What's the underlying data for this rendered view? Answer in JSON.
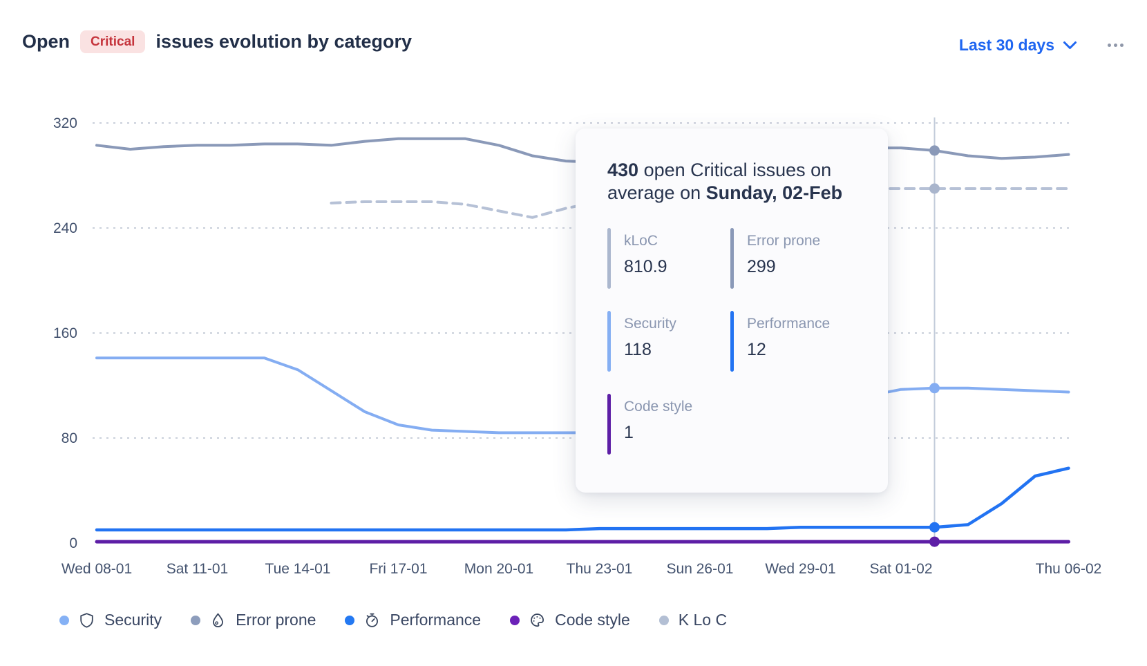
{
  "header": {
    "title_prefix": "Open",
    "severity_badge": "Critical",
    "title_suffix": "issues evolution by category",
    "range_selector": "Last 30 days"
  },
  "tooltip": {
    "headline_value": "430",
    "headline_text": " open Critical issues on average on ",
    "headline_date": "Sunday, 02-Feb",
    "metrics": [
      {
        "label": "kLoC",
        "value": "810.9",
        "color": "#ABB7CE"
      },
      {
        "label": "Error prone",
        "value": "299",
        "color": "#8A99B8"
      },
      {
        "label": "Security",
        "value": "118",
        "color": "#85AFF3"
      },
      {
        "label": "Performance",
        "value": "12",
        "color": "#2273F2"
      },
      {
        "label": "Code style",
        "value": "1",
        "color": "#5D1EA6"
      }
    ]
  },
  "legend": [
    {
      "label": "Security",
      "icon": "shield-icon",
      "color": "#85B1F5"
    },
    {
      "label": "Error prone",
      "icon": "droplet-icon",
      "color": "#8D9DBC"
    },
    {
      "label": "Performance",
      "icon": "stopwatch-icon",
      "color": "#2479F2"
    },
    {
      "label": "Code style",
      "icon": "palette-icon",
      "color": "#6B21B8"
    },
    {
      "label": "K Lo C",
      "icon": null,
      "color": "#B3BFD4"
    }
  ],
  "colors": {
    "title_text": "#222F48",
    "badge_bg": "#FAE2E2",
    "badge_text": "#C5343C",
    "range_link": "#1F66F1",
    "axis_text": "#44536F",
    "gridline": "#C9CFDA",
    "highlight_line": "#C3CCDA",
    "tooltip_bg": "#FBFBFD"
  },
  "chart_data": {
    "type": "line",
    "title": "Open Critical issues evolution by category",
    "x_range": {
      "start": "Wed 08-01",
      "end": "Thu 06-02",
      "days": 30
    },
    "x_ticks": [
      {
        "index": 0,
        "label": "Wed 08-01"
      },
      {
        "index": 3,
        "label": "Sat 11-01"
      },
      {
        "index": 6,
        "label": "Tue 14-01"
      },
      {
        "index": 9,
        "label": "Fri 17-01"
      },
      {
        "index": 12,
        "label": "Mon 20-01"
      },
      {
        "index": 15,
        "label": "Thu 23-01"
      },
      {
        "index": 18,
        "label": "Sun 26-01"
      },
      {
        "index": 21,
        "label": "Wed 29-01"
      },
      {
        "index": 24,
        "label": "Sat 01-02"
      },
      {
        "index": 29,
        "label": "Thu 06-02"
      }
    ],
    "y_ticks": [
      0,
      80,
      160,
      240,
      320
    ],
    "ylim": [
      0,
      335
    ],
    "grid": true,
    "legend_position": "bottom",
    "highlight": {
      "day_index": 25,
      "date_label": "Sunday, 02-Feb",
      "open_critical_avg": 430
    },
    "series": [
      {
        "name": "kLoC",
        "color": "#B6C1D6",
        "dash": "13 9",
        "width": 4,
        "dot_color": "#A9B5CC",
        "note": "plotted on hidden secondary scale; actual value on 02-Feb is 810.9 kLoC",
        "values": [
          null,
          null,
          null,
          null,
          null,
          null,
          null,
          259,
          260,
          260,
          260,
          258,
          253,
          248,
          255,
          260,
          262,
          264,
          266,
          267,
          268,
          269,
          270,
          270,
          270,
          270,
          270,
          270,
          270,
          270
        ]
      },
      {
        "name": "Error prone",
        "color": "#8A99B8",
        "dash": null,
        "width": 4,
        "values": [
          303,
          300,
          302,
          303,
          303,
          304,
          304,
          303,
          306,
          308,
          308,
          308,
          303,
          295,
          291,
          290,
          291,
          293,
          295,
          297,
          299,
          300,
          301,
          301,
          301,
          299,
          295,
          293,
          294,
          296
        ]
      },
      {
        "name": "Security",
        "color": "#84ADF2",
        "dash": null,
        "width": 4,
        "values": [
          141,
          141,
          141,
          141,
          141,
          141,
          132,
          116,
          100,
          90,
          86,
          85,
          84,
          84,
          84,
          84,
          84,
          85,
          88,
          93,
          99,
          105,
          109,
          112,
          117,
          118,
          118,
          117,
          116,
          115
        ]
      },
      {
        "name": "Performance",
        "color": "#2273F2",
        "dash": null,
        "width": 4.5,
        "values": [
          10,
          10,
          10,
          10,
          10,
          10,
          10,
          10,
          10,
          10,
          10,
          10,
          10,
          10,
          10,
          11,
          11,
          11,
          11,
          11,
          11,
          12,
          12,
          12,
          12,
          12,
          14,
          30,
          51,
          57
        ]
      },
      {
        "name": "Code style",
        "color": "#5D1EA6",
        "dash": null,
        "width": 5,
        "values": [
          1,
          1,
          1,
          1,
          1,
          1,
          1,
          1,
          1,
          1,
          1,
          1,
          1,
          1,
          1,
          1,
          1,
          1,
          1,
          1,
          1,
          1,
          1,
          1,
          1,
          1,
          1,
          1,
          1,
          1
        ]
      }
    ]
  }
}
